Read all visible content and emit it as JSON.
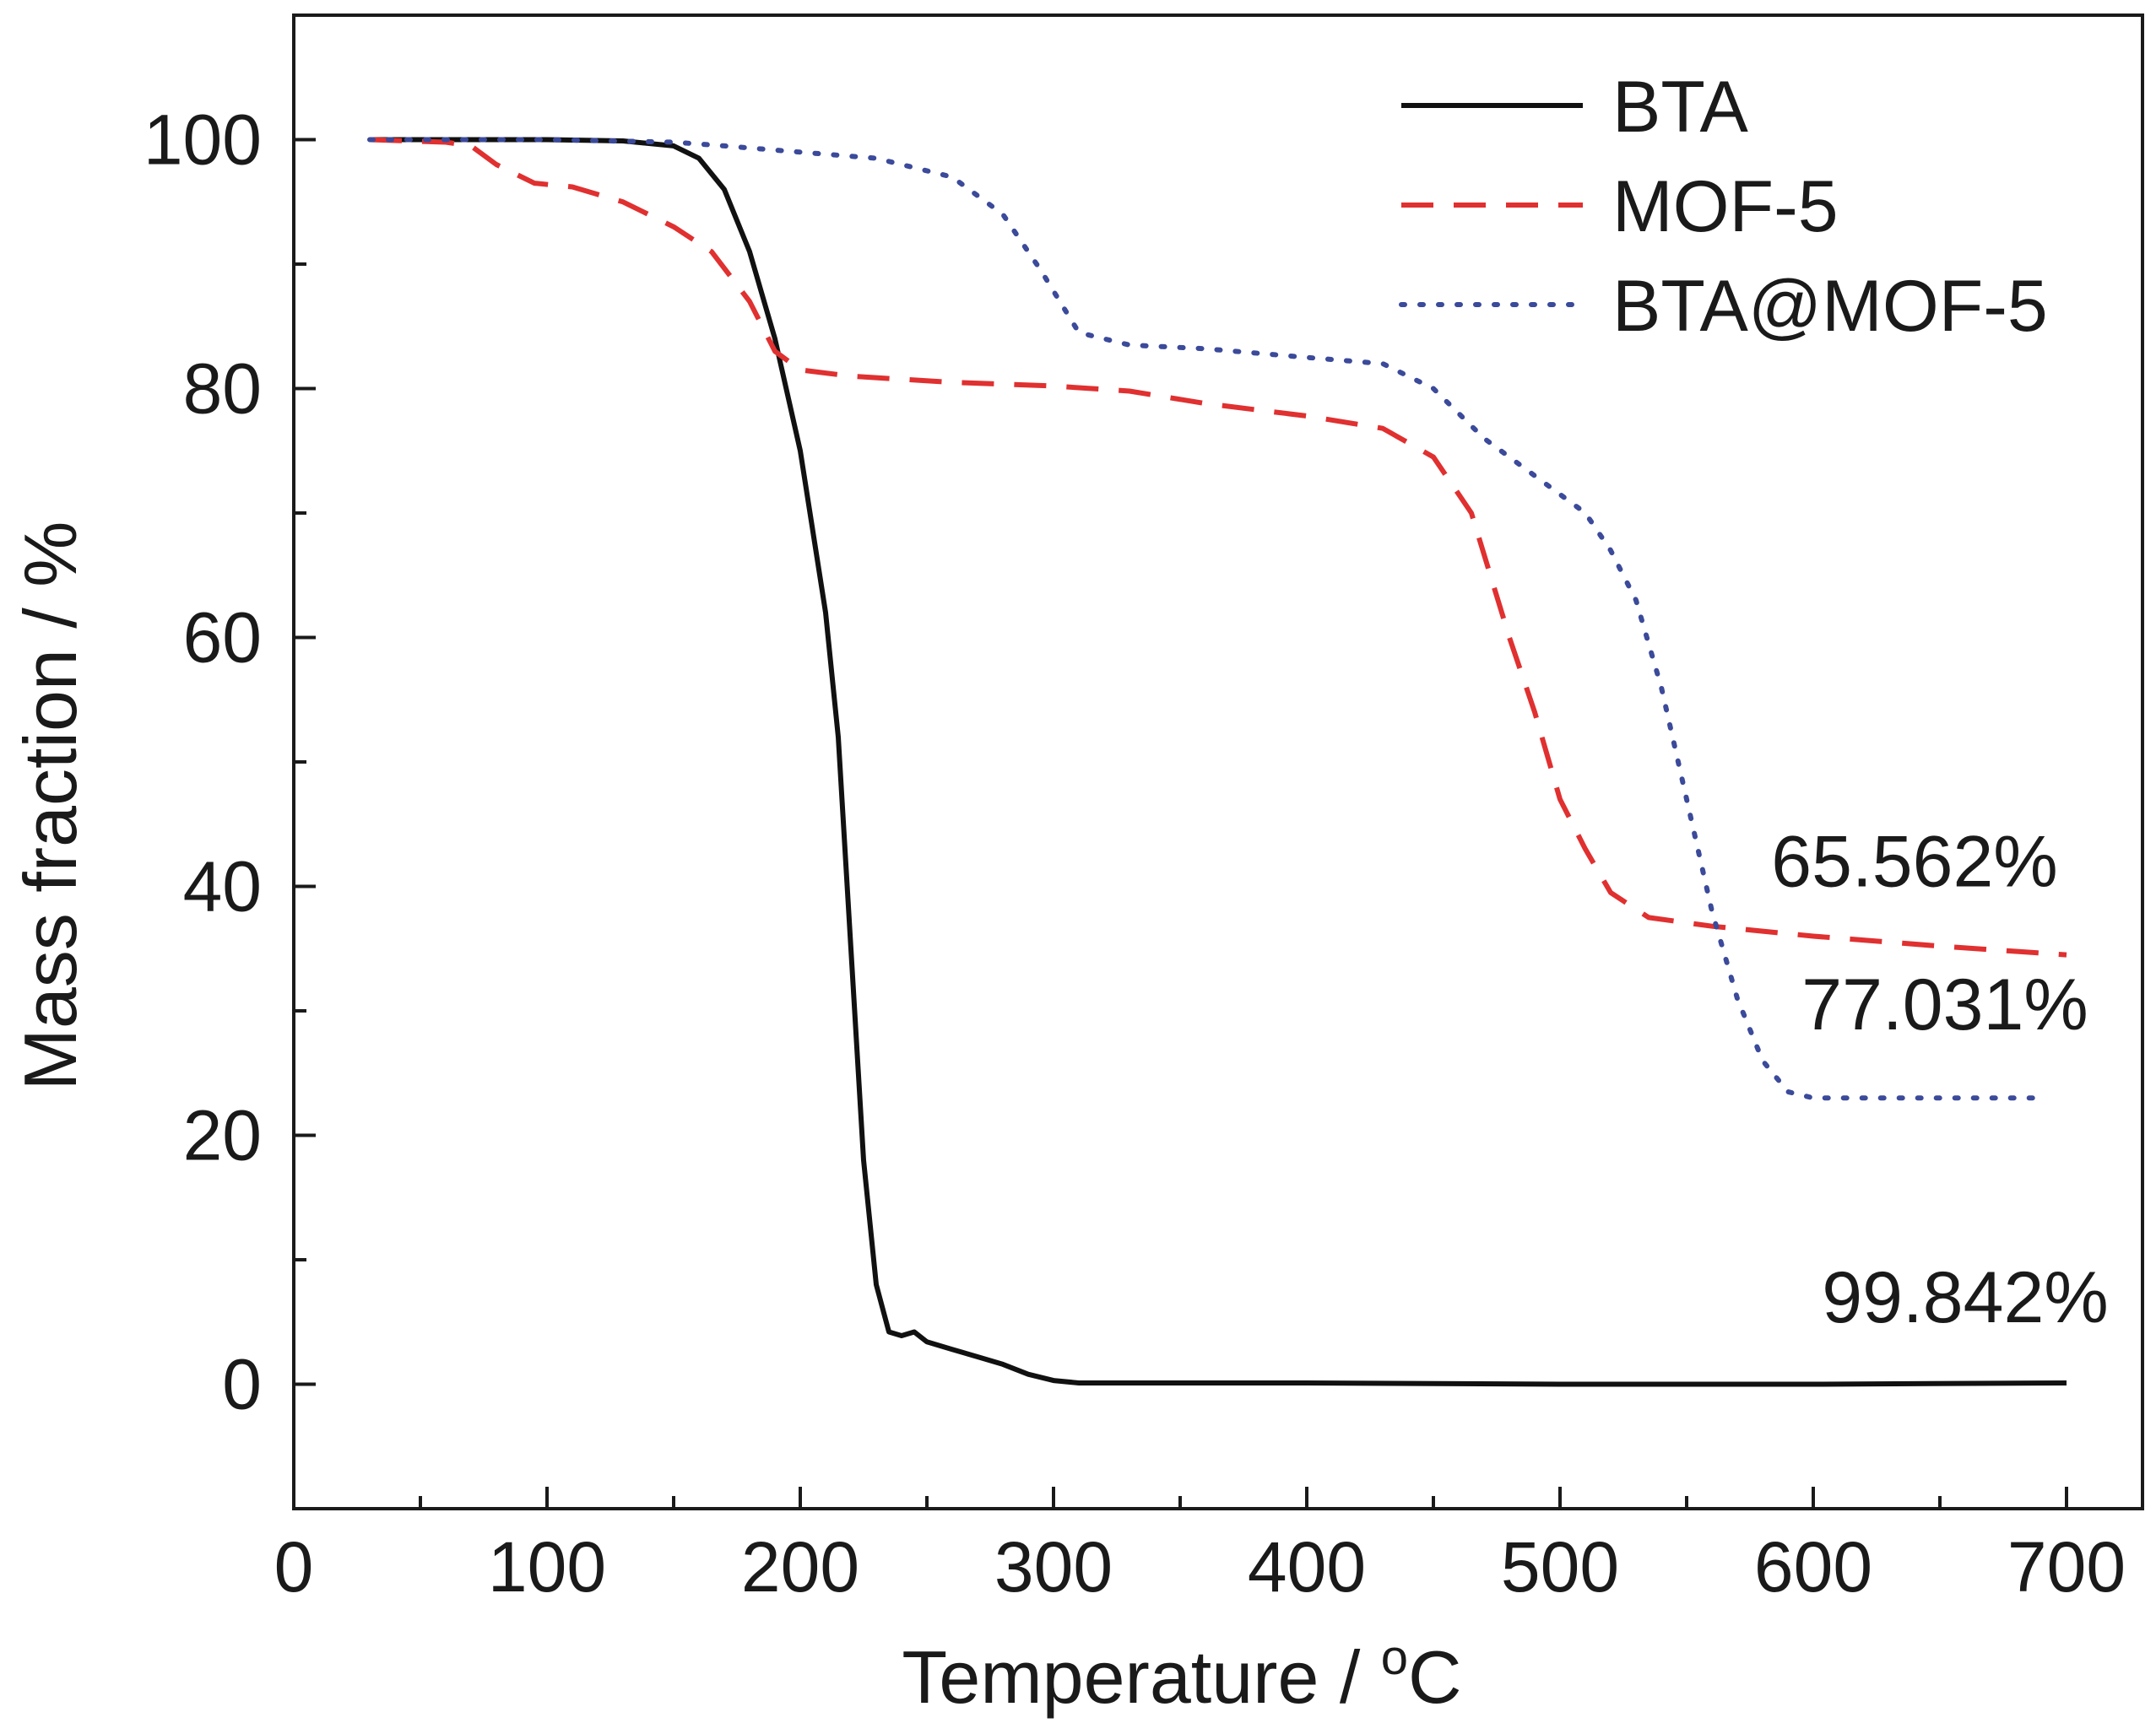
{
  "chart_data": {
    "type": "line",
    "xlabel": "Temperature / ",
    "xlabel_unit_sup": "o",
    "xlabel_unit": "C",
    "ylabel": "Mass fraction / %",
    "xlim": [
      0,
      730
    ],
    "ylim": [
      -10,
      110
    ],
    "x_ticks": [
      0,
      100,
      200,
      300,
      400,
      500,
      600,
      700
    ],
    "y_ticks": [
      0,
      20,
      40,
      60,
      80,
      100
    ],
    "grid": false,
    "legend_position": "top-right",
    "series": [
      {
        "name": "BTA",
        "color": "#111111",
        "style": "solid",
        "points": [
          [
            30,
            100
          ],
          [
            60,
            100
          ],
          [
            100,
            100
          ],
          [
            130,
            99.9
          ],
          [
            150,
            99.5
          ],
          [
            160,
            98.5
          ],
          [
            170,
            96
          ],
          [
            180,
            91
          ],
          [
            190,
            84
          ],
          [
            200,
            75
          ],
          [
            210,
            62
          ],
          [
            215,
            52
          ],
          [
            220,
            35
          ],
          [
            225,
            18
          ],
          [
            230,
            8
          ],
          [
            235,
            4.2
          ],
          [
            240,
            3.9
          ],
          [
            245,
            4.2
          ],
          [
            250,
            3.4
          ],
          [
            260,
            2.8
          ],
          [
            270,
            2.2
          ],
          [
            280,
            1.6
          ],
          [
            290,
            0.8
          ],
          [
            300,
            0.3
          ],
          [
            310,
            0.1
          ],
          [
            400,
            0.1
          ],
          [
            500,
            0
          ],
          [
            600,
            0
          ],
          [
            700,
            0.1
          ]
        ]
      },
      {
        "name": "MOF-5",
        "color": "#e03030",
        "style": "dashed",
        "points": [
          [
            30,
            100
          ],
          [
            60,
            99.8
          ],
          [
            70,
            99.5
          ],
          [
            80,
            98
          ],
          [
            95,
            96.5
          ],
          [
            110,
            96.2
          ],
          [
            130,
            95
          ],
          [
            150,
            93
          ],
          [
            165,
            91
          ],
          [
            180,
            87
          ],
          [
            190,
            83
          ],
          [
            200,
            81.5
          ],
          [
            220,
            81
          ],
          [
            260,
            80.5
          ],
          [
            300,
            80.2
          ],
          [
            330,
            79.8
          ],
          [
            360,
            78.8
          ],
          [
            400,
            77.8
          ],
          [
            430,
            76.8
          ],
          [
            450,
            74.5
          ],
          [
            465,
            70
          ],
          [
            480,
            60
          ],
          [
            490,
            54
          ],
          [
            500,
            47
          ],
          [
            510,
            43
          ],
          [
            520,
            39.5
          ],
          [
            535,
            37.5
          ],
          [
            560,
            36.8
          ],
          [
            600,
            36
          ],
          [
            650,
            35.2
          ],
          [
            700,
            34.5
          ]
        ]
      },
      {
        "name": "BTA@MOF-5",
        "color": "#3b4a9a",
        "style": "dotted",
        "points": [
          [
            30,
            100
          ],
          [
            100,
            100
          ],
          [
            150,
            99.8
          ],
          [
            170,
            99.5
          ],
          [
            200,
            99
          ],
          [
            230,
            98.5
          ],
          [
            260,
            97
          ],
          [
            280,
            94
          ],
          [
            295,
            89.5
          ],
          [
            310,
            84.5
          ],
          [
            330,
            83.5
          ],
          [
            360,
            83.2
          ],
          [
            400,
            82.5
          ],
          [
            430,
            82
          ],
          [
            450,
            80
          ],
          [
            470,
            76
          ],
          [
            490,
            73
          ],
          [
            510,
            70
          ],
          [
            520,
            67
          ],
          [
            530,
            63
          ],
          [
            540,
            56
          ],
          [
            550,
            47
          ],
          [
            560,
            38
          ],
          [
            570,
            31
          ],
          [
            580,
            26
          ],
          [
            590,
            23.5
          ],
          [
            600,
            23
          ],
          [
            650,
            23
          ],
          [
            690,
            23
          ]
        ]
      }
    ],
    "annotations": [
      {
        "text": "65.562%",
        "x": 640,
        "y": 40
      },
      {
        "text": "77.031%",
        "x": 652,
        "y": 28.5
      },
      {
        "text": "99.842%",
        "x": 660,
        "y": 5
      }
    ]
  }
}
